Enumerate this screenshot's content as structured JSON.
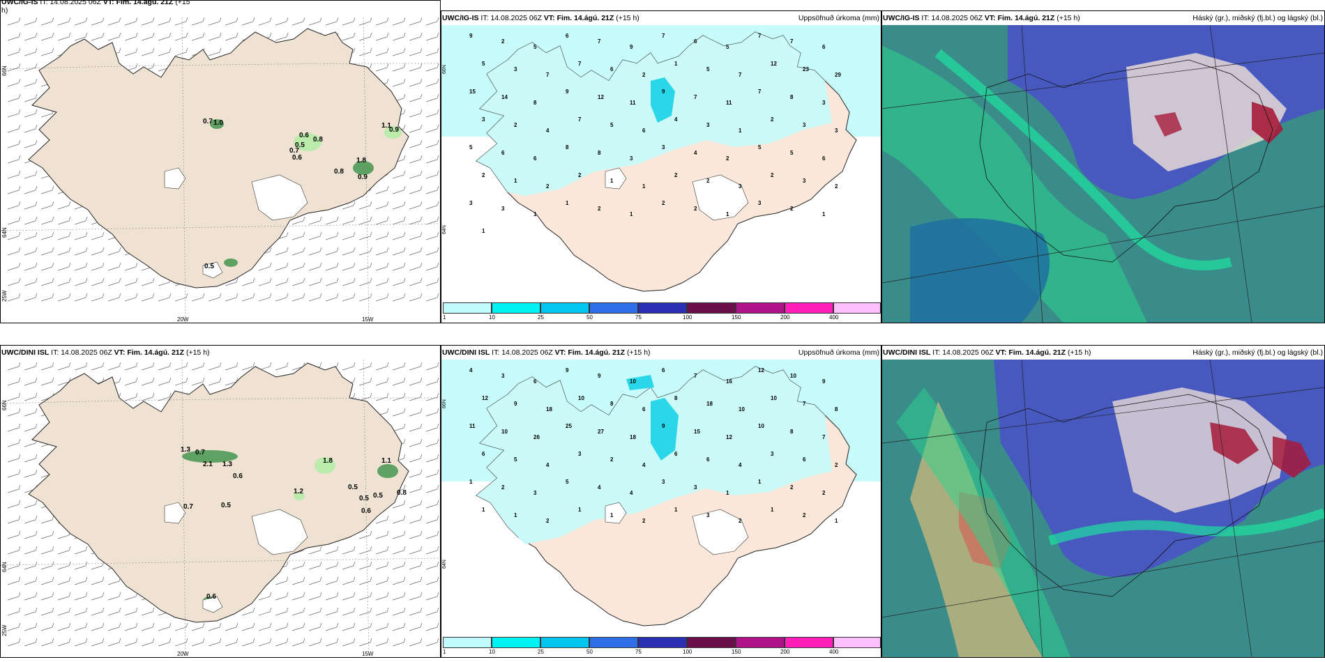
{
  "panels": [
    {
      "id": "wind-ig",
      "header": {
        "model": "UWC/IG-IS",
        "it_label": "IT:",
        "it": "14.08.2025 06Z",
        "vt_label": "VT:",
        "vt": "Fim. 14.ágú. 21Z",
        "lead": "(+15",
        "lead2": "h)"
      },
      "axes": {
        "lon1": "20W",
        "lon2": "15W",
        "lat1": "66N",
        "lat2": "64N",
        "lat3": "25W"
      },
      "values": [
        "0.7",
        "1.0",
        "0.6",
        "0.8",
        "0.5",
        "0.7",
        "0.6",
        "1.1",
        "0.9",
        "1.8",
        "0.8",
        "0.9",
        "0.5"
      ]
    },
    {
      "id": "precip-ig",
      "header": {
        "model": "UWC/IG-IS",
        "it_label": "IT:",
        "it": "14.08.2025 06Z",
        "vt_label": "VT:",
        "vt": "Fim. 14.ágú. 21Z",
        "lead": "(+15 h)",
        "right": "Uppsöfnuð úrkoma (mm)"
      },
      "axes": {
        "lat1": "66N",
        "lat2": "64N"
      },
      "values": [
        "9",
        "2",
        "5",
        "6",
        "7",
        "9",
        "7",
        "6",
        "5",
        "7",
        "7",
        "6",
        "5",
        "3",
        "7",
        "7",
        "6",
        "2",
        "1",
        "5",
        "7",
        "12",
        "23",
        "29",
        "15",
        "14",
        "8",
        "9",
        "12",
        "11",
        "9",
        "7",
        "11",
        "7",
        "8",
        "3",
        "3",
        "2",
        "4",
        "7",
        "5",
        "6",
        "4",
        "3",
        "1",
        "2",
        "3",
        "3",
        "5",
        "6",
        "6",
        "8",
        "8",
        "3",
        "3",
        "4",
        "2",
        "5",
        "5",
        "6",
        "2",
        "1",
        "2",
        "2",
        "1",
        "1",
        "2",
        "2",
        "3",
        "2",
        "3",
        "2",
        "3",
        "3",
        "1",
        "1",
        "2",
        "1",
        "2",
        "2",
        "1",
        "3",
        "2",
        "1",
        "1"
      ]
    },
    {
      "id": "cloud-ig",
      "header": {
        "model": "UWC/IG-IS",
        "it_label": "IT:",
        "it": "14.08.2025 06Z",
        "vt_label": "VT:",
        "vt": "Fim. 14.ágú. 21Z",
        "lead": "(+15 h)",
        "right": "Háský (gr.), miðský (fj.bl.) og lágský (bl.)"
      }
    },
    {
      "id": "wind-dini",
      "header": {
        "model": "UWC/DINI ISL",
        "it_label": "IT:",
        "it": "14.08.2025 06Z",
        "vt_label": "VT:",
        "vt": "Fim. 14.ágú. 21Z",
        "lead": "(+15 h)"
      },
      "axes": {
        "lon1": "20W",
        "lon2": "15W",
        "lat1": "66N",
        "lat2": "64N",
        "lat3": "25W"
      },
      "values": [
        "1.3",
        "0.7",
        "2.1",
        "1.3",
        "0.6",
        "1.8",
        "1.2",
        "0.5",
        "0.5",
        "0.5",
        "0.8",
        "1.1",
        "0.6",
        "0.7",
        "0.5",
        "0.6"
      ]
    },
    {
      "id": "precip-dini",
      "header": {
        "model": "UWC/DINI ISL",
        "it_label": "IT:",
        "it": "14.08.2025 06Z",
        "vt_label": "VT:",
        "vt": "Fim. 14.ágú. 21Z",
        "lead": "(+15 h)",
        "right": "Uppsöfnuð úrkoma (mm)"
      },
      "axes": {
        "lat1": "66N",
        "lat2": "64N"
      },
      "values": [
        "4",
        "3",
        "6",
        "9",
        "9",
        "10",
        "6",
        "7",
        "16",
        "12",
        "10",
        "9",
        "12",
        "9",
        "18",
        "10",
        "8",
        "6",
        "8",
        "18",
        "10",
        "10",
        "7",
        "8",
        "11",
        "10",
        "26",
        "25",
        "27",
        "18",
        "9",
        "15",
        "12",
        "10",
        "8",
        "7",
        "6",
        "5",
        "4",
        "3",
        "2",
        "4",
        "6",
        "6",
        "4",
        "3",
        "6",
        "2",
        "1",
        "2",
        "3",
        "5",
        "4",
        "4",
        "3",
        "3",
        "1",
        "1",
        "2",
        "2",
        "1",
        "1",
        "2",
        "1",
        "1",
        "2",
        "1",
        "3",
        "2",
        "1",
        "2",
        "1"
      ]
    },
    {
      "id": "cloud-dini",
      "header": {
        "model": "UWC/DINI ISL",
        "it_label": "IT:",
        "it": "14.08.2025 06Z",
        "vt_label": "VT:",
        "vt": "Fim. 14.ágú. 21Z",
        "lead": "(+15 h)",
        "right": "Háský (gr.), miðský (fj.bl.) og lágský (bl.)"
      }
    }
  ],
  "colorbar": {
    "ticks": [
      "1",
      "10",
      "25",
      "50",
      "75",
      "100",
      "150",
      "200",
      "400"
    ],
    "colors": [
      "#c2fbfb",
      "#00f2f2",
      "#00c6f0",
      "#2f6fe8",
      "#2a2fb4",
      "#6b0f4a",
      "#b0128a",
      "#ff1fb8",
      "#ffc0ff"
    ]
  },
  "colors": {
    "land_wind": "#efe2d2",
    "land_precip": "#fbe8db",
    "precip_cover": "#c8fbfb",
    "precip_heavy": "#2ad7e8",
    "green_light": "#a9ef9f",
    "green_dark": "#0b5b1a",
    "cloud_ocean": "#3a8c8a",
    "cloud_high": "#29d38e",
    "cloud_mid": "#4a4fc8",
    "cloud_low": "#1f6fa0",
    "cloud_red": "#a51b3a"
  }
}
